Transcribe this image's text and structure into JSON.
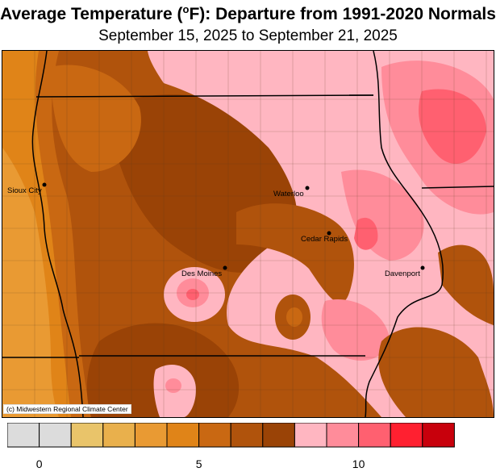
{
  "title": {
    "prefix": "Average Temperature (",
    "degree": "o",
    "suffix": "F): Departure from 1991-2020 Normals"
  },
  "subtitle": "September 15, 2025 to September 21, 2025",
  "credit": "(c) Midwestern Regional Climate Center",
  "cities": [
    {
      "name": "Sioux City"
    },
    {
      "name": "Waterloo"
    },
    {
      "name": "Cedar Rapids"
    },
    {
      "name": "Des Moines"
    },
    {
      "name": "Davenport"
    }
  ],
  "legend": {
    "colors": [
      "#dcdcdc",
      "#dcdcdc",
      "#e9c46a",
      "#e9b04c",
      "#e99a33",
      "#e08418",
      "#c96812",
      "#b0530c",
      "#9a4306",
      "#ffb6c1",
      "#ff8c9a",
      "#ff6070",
      "#ff2030",
      "#c8000c"
    ],
    "ticks": [
      {
        "label": "0",
        "index": 1
      },
      {
        "label": "5",
        "index": 6
      },
      {
        "label": "10",
        "index": 11
      }
    ]
  },
  "colors": {
    "light_orange": "#e99a33",
    "orange": "#e08418",
    "medium_brown": "#c96812",
    "brown": "#b0530c",
    "dark_brown": "#9a4306",
    "light_pink": "#ffb6c1",
    "pink": "#ff8c9a",
    "rose": "#ff6070"
  }
}
